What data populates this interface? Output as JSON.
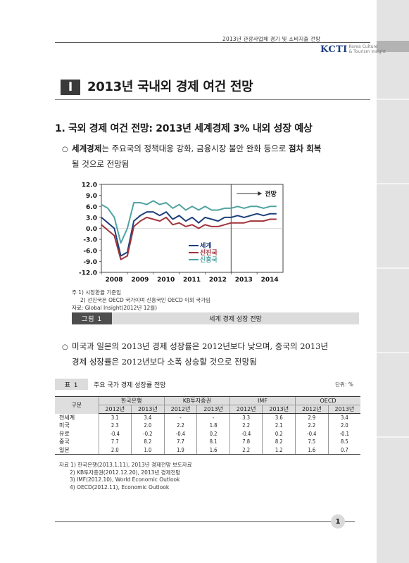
{
  "header": {
    "running_title": "2013년 관광사업체 경기 및 소비지출 전망",
    "logo_main": "KCTI",
    "logo_sub_1": "Korea Culture",
    "logo_sub_2": "& Tourism Insight"
  },
  "section": {
    "number": "I",
    "title": "2013년 국내외 경제 여건 전망"
  },
  "subsection": {
    "title": "1. 국외 경제 여건 전망: 2013년 세계경제 3% 내외 성장 예상"
  },
  "paragraph1": {
    "bullet": "○",
    "bold_lead": "세계경제",
    "text_mid": "는 주요국의 정책대응 강화, 금융시장 불안 완화 등으로 ",
    "bold_tail": "점차 회복",
    "line2": "될 것으로 전망됨"
  },
  "figure": {
    "label": "그림 1",
    "title": "세계 경제 성장 전망",
    "notes": [
      "주 1) 시장환율 기준임",
      "2) 선진국은 OECD 국가이며 신흥국인 OECD 이외 국가임",
      "자료: Global Insight(2012년 12월)"
    ]
  },
  "chart_data": {
    "type": "line",
    "title": "",
    "xlabel": "",
    "ylabel": "",
    "x_ticks": [
      "2008",
      "2009",
      "2010",
      "2011",
      "2012",
      "2013",
      "2014"
    ],
    "y_ticks": [
      "12.0",
      "9.0",
      "6.0",
      "3.0",
      "0.0",
      "-3.0",
      "-6.0",
      "-9.0",
      "-12.0"
    ],
    "ylim": [
      -12,
      12
    ],
    "xlim": [
      2008,
      2015
    ],
    "forecast_start": 2013,
    "forecast_label": "전망",
    "grid": false,
    "legend_position": "bottom-right",
    "series": [
      {
        "name": "세계",
        "color": "#1f3f7a",
        "x": [
          2008.0,
          2008.25,
          2008.5,
          2008.75,
          2009.0,
          2009.25,
          2009.5,
          2009.75,
          2010.0,
          2010.25,
          2010.5,
          2010.75,
          2011.0,
          2011.25,
          2011.5,
          2011.75,
          2012.0,
          2012.25,
          2012.5,
          2012.75,
          2013.0,
          2013.25,
          2013.5,
          2013.75,
          2014.0,
          2014.25,
          2014.5,
          2014.75
        ],
        "y": [
          3.0,
          1.5,
          0.0,
          -7.5,
          -6.5,
          2.0,
          3.5,
          4.5,
          4.5,
          3.5,
          4.5,
          2.5,
          3.5,
          2.0,
          3.0,
          1.5,
          3.0,
          2.5,
          2.0,
          3.0,
          3.0,
          3.5,
          3.0,
          3.5,
          4.0,
          3.5,
          4.0,
          4.0
        ]
      },
      {
        "name": "선진국",
        "color": "#a0343c",
        "x": [
          2008.0,
          2008.25,
          2008.5,
          2008.75,
          2009.0,
          2009.25,
          2009.5,
          2009.75,
          2010.0,
          2010.25,
          2010.5,
          2010.75,
          2011.0,
          2011.25,
          2011.5,
          2011.75,
          2012.0,
          2012.25,
          2012.5,
          2012.75,
          2013.0,
          2013.25,
          2013.5,
          2013.75,
          2014.0,
          2014.25,
          2014.5,
          2014.75
        ],
        "y": [
          1.0,
          -0.5,
          -2.0,
          -8.5,
          -7.5,
          0.5,
          2.0,
          3.0,
          2.5,
          2.0,
          3.0,
          1.0,
          1.5,
          0.5,
          1.0,
          0.0,
          1.0,
          0.5,
          0.5,
          1.0,
          1.5,
          1.5,
          1.5,
          2.0,
          2.0,
          2.0,
          2.5,
          2.5
        ]
      },
      {
        "name": "신흥국",
        "color": "#4fa3a0",
        "x": [
          2008.0,
          2008.25,
          2008.5,
          2008.75,
          2009.0,
          2009.25,
          2009.5,
          2009.75,
          2010.0,
          2010.25,
          2010.5,
          2010.75,
          2011.0,
          2011.25,
          2011.5,
          2011.75,
          2012.0,
          2012.25,
          2012.5,
          2012.75,
          2013.0,
          2013.25,
          2013.5,
          2013.75,
          2014.0,
          2014.25,
          2014.5,
          2014.75
        ],
        "y": [
          6.5,
          5.5,
          3.0,
          -4.0,
          0.0,
          7.0,
          7.0,
          6.5,
          7.5,
          6.5,
          7.0,
          5.5,
          6.5,
          5.0,
          6.0,
          5.0,
          6.0,
          5.0,
          5.0,
          5.5,
          5.5,
          6.0,
          5.5,
          6.0,
          6.0,
          5.5,
          6.0,
          6.0
        ]
      }
    ]
  },
  "paragraph2": {
    "bullet": "○",
    "line1": "미국과 일본의 2013년 경제 성장률은 2012년보다 낮으며, 중국의 2013년",
    "line2": "경제 성장률은 2012년보다 소폭 상승할 것으로 전망됨"
  },
  "table": {
    "label": "표 1",
    "title": "주요 국가 경제 성장률 전망",
    "unit": "단위: %",
    "corner": "구분",
    "groups": [
      "한국은행",
      "KB투자증권",
      "IMF",
      "OECD"
    ],
    "years": [
      "2012년",
      "2013년",
      "2012년",
      "2013년",
      "2012년",
      "2013년",
      "2012년",
      "2013년"
    ],
    "rows": [
      {
        "label": "전세계",
        "values": [
          "3.1",
          "3.4",
          "-",
          "-",
          "3.3",
          "3.6",
          "2.9",
          "3.4"
        ]
      },
      {
        "label": "미국",
        "values": [
          "2.3",
          "2.0",
          "2.2",
          "1.8",
          "2.2",
          "2.1",
          "2.2",
          "2.0"
        ]
      },
      {
        "label": "유로",
        "values": [
          "-0.4",
          "-0.2",
          "-0.4",
          "0.2",
          "-0.4",
          "0.2",
          "-0.4",
          "-0.1"
        ]
      },
      {
        "label": "중국",
        "values": [
          "7.7",
          "8.2",
          "7.7",
          "8.1",
          "7.8",
          "8.2",
          "7.5",
          "8.5"
        ]
      },
      {
        "label": "일본",
        "values": [
          "2.0",
          "1.0",
          "1.9",
          "1.6",
          "2.2",
          "1.2",
          "1.6",
          "0.7"
        ]
      }
    ],
    "sources": [
      "자료 1) 한국은행(2013.1.11), 2013년 경제전망 보도자료",
      "2) KB투자증권(2012.12.20), 2013년 경제전망",
      "3) IMF(2012.10), World Economic Outlook",
      "4) OECD(2012.11), Economic Outlook"
    ]
  },
  "footer": {
    "page_number": "1"
  }
}
